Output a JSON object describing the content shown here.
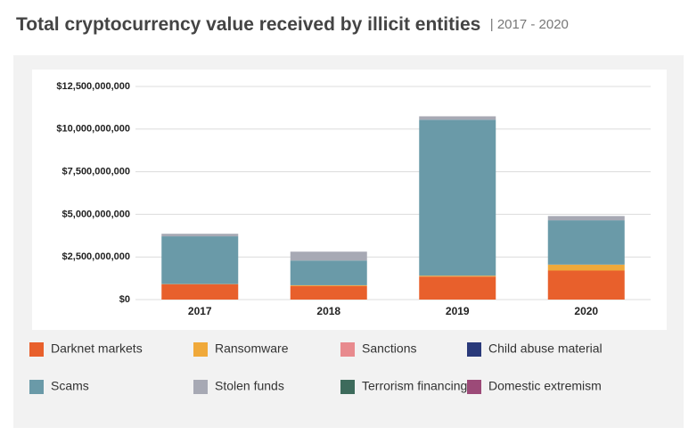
{
  "chart_data": {
    "type": "stacked-bar",
    "title": "Total cryptocurrency value received by illicit entities",
    "subtitle": "| 2017 - 2020",
    "categories": [
      "2017",
      "2018",
      "2019",
      "2020"
    ],
    "ylim": [
      0,
      12500000000
    ],
    "yticks": [
      {
        "value": 0,
        "label": "$0"
      },
      {
        "value": 2500000000,
        "label": "$2,500,000,000"
      },
      {
        "value": 5000000000,
        "label": "$5,000,000,000"
      },
      {
        "value": 7500000000,
        "label": "$7,500,000,000"
      },
      {
        "value": 10000000000,
        "label": "$10,000,000,000"
      },
      {
        "value": 12500000000,
        "label": "$12,500,000,000"
      }
    ],
    "grid": true,
    "series": [
      {
        "name": "Darknet markets",
        "color": "#e8602c",
        "values": [
          900000000,
          800000000,
          1350000000,
          1700000000
        ]
      },
      {
        "name": "Ransomware",
        "color": "#f0a93a",
        "values": [
          10000000,
          40000000,
          50000000,
          350000000
        ]
      },
      {
        "name": "Sanctions",
        "color": "#e88a8e",
        "values": [
          0,
          0,
          0,
          0
        ]
      },
      {
        "name": "Child abuse material",
        "color": "#2a3a7a",
        "values": [
          0,
          0,
          0,
          0
        ]
      },
      {
        "name": "Scams",
        "color": "#6a9aa8",
        "values": [
          2800000000,
          1450000000,
          9150000000,
          2600000000
        ]
      },
      {
        "name": "Stolen funds",
        "color": "#a7a9b4",
        "values": [
          150000000,
          520000000,
          200000000,
          250000000
        ]
      },
      {
        "name": "Terrorism financing",
        "color": "#3d6b5c",
        "values": [
          0,
          0,
          0,
          0
        ]
      },
      {
        "name": "Domestic extremism",
        "color": "#9c4a78",
        "values": [
          0,
          0,
          0,
          0
        ]
      }
    ]
  }
}
